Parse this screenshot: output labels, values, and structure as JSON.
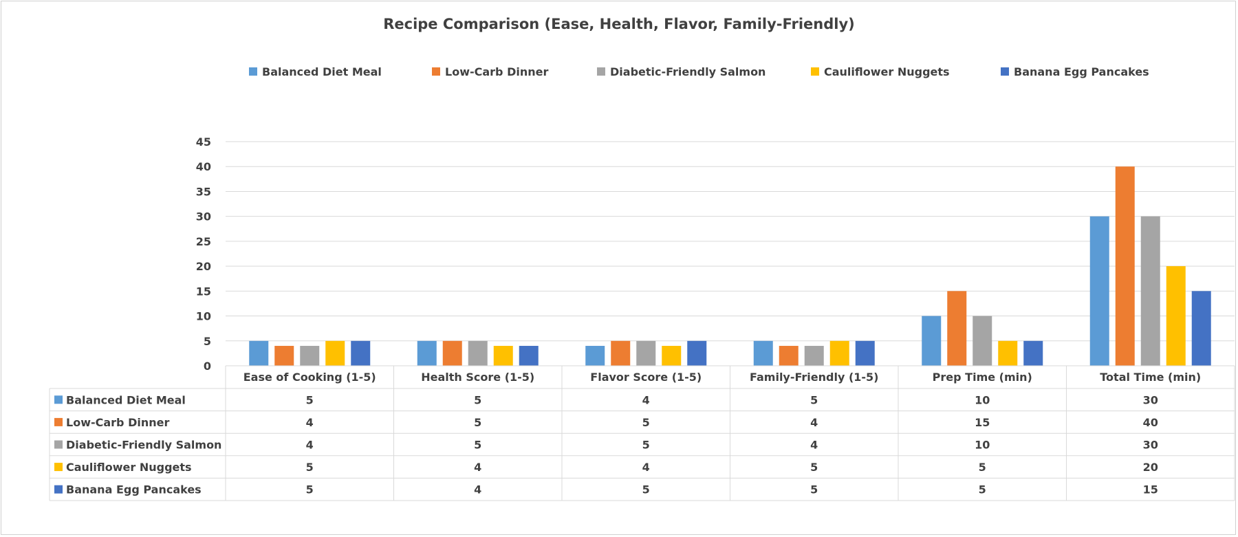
{
  "chart_data": {
    "type": "bar",
    "title": "Recipe Comparison (Ease, Health, Flavor, Family-Friendly)",
    "categories": [
      "Ease of Cooking (1-5)",
      "Health Score (1-5)",
      "Flavor Score (1-5)",
      "Family-Friendly (1-5)",
      "Prep Time (min)",
      "Total Time (min)"
    ],
    "series": [
      {
        "name": "Balanced Diet Meal",
        "color": "#5B9BD5",
        "values": [
          5,
          5,
          4,
          5,
          10,
          30
        ]
      },
      {
        "name": "Low-Carb Dinner",
        "color": "#ED7D31",
        "values": [
          4,
          5,
          5,
          4,
          15,
          40
        ]
      },
      {
        "name": "Diabetic-Friendly Salmon",
        "color": "#A5A5A5",
        "values": [
          4,
          5,
          5,
          4,
          10,
          30
        ]
      },
      {
        "name": "Cauliflower Nuggets",
        "color": "#FFC000",
        "values": [
          5,
          4,
          4,
          5,
          5,
          20
        ]
      },
      {
        "name": "Banana Egg Pancakes",
        "color": "#4472C4",
        "values": [
          5,
          4,
          5,
          5,
          5,
          15
        ]
      }
    ],
    "ylim": [
      0,
      45
    ],
    "yticks": [
      0,
      5,
      10,
      15,
      20,
      25,
      30,
      35,
      40,
      45
    ],
    "grid": true,
    "legend": "top",
    "data_table": true
  }
}
